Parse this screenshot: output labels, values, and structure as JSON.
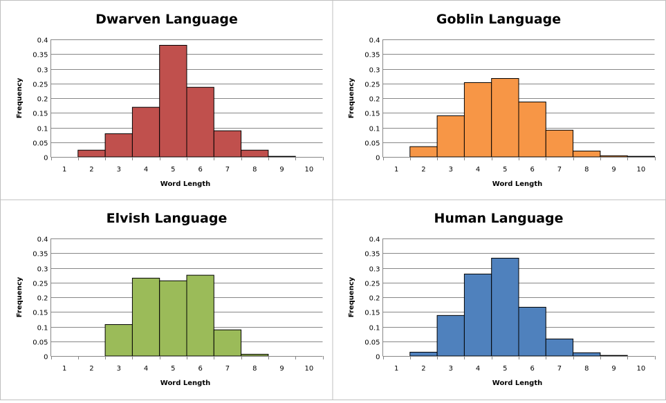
{
  "chart_data": [
    {
      "type": "bar",
      "title": "Dwarven Language",
      "xlabel": "Word Length",
      "ylabel": "Frequency",
      "categories": [
        "1",
        "2",
        "3",
        "4",
        "5",
        "6",
        "7",
        "8",
        "9",
        "10"
      ],
      "values": [
        0,
        0.023,
        0.079,
        0.169,
        0.38,
        0.237,
        0.089,
        0.023,
        0.002,
        0
      ],
      "yticks": [
        "0",
        "0.05",
        "0.1",
        "0.15",
        "0.2",
        "0.25",
        "0.3",
        "0.35",
        "0.4"
      ],
      "ylim": [
        0,
        0.4
      ],
      "grid": true,
      "color": "#c0504d"
    },
    {
      "type": "bar",
      "title": "Goblin Language",
      "xlabel": "Word Length",
      "ylabel": "Frequency",
      "categories": [
        "1",
        "2",
        "3",
        "4",
        "5",
        "6",
        "7",
        "8",
        "9",
        "10"
      ],
      "values": [
        0,
        0.035,
        0.14,
        0.253,
        0.267,
        0.187,
        0.091,
        0.02,
        0.004,
        0.002
      ],
      "yticks": [
        "0",
        "0.05",
        "0.1",
        "0.15",
        "0.2",
        "0.25",
        "0.3",
        "0.35",
        "0.4"
      ],
      "ylim": [
        0,
        0.4
      ],
      "grid": true,
      "color": "#f79646"
    },
    {
      "type": "bar",
      "title": "Elvish Language",
      "xlabel": "Word Length",
      "ylabel": "Frequency",
      "categories": [
        "1",
        "2",
        "3",
        "4",
        "5",
        "6",
        "7",
        "8",
        "9",
        "10"
      ],
      "values": [
        0,
        0,
        0.107,
        0.265,
        0.256,
        0.275,
        0.089,
        0.006,
        0,
        0
      ],
      "yticks": [
        "0",
        "0.05",
        "0.1",
        "0.15",
        "0.2",
        "0.25",
        "0.3",
        "0.35",
        "0.4"
      ],
      "ylim": [
        0,
        0.4
      ],
      "grid": true,
      "color": "#9bbb59"
    },
    {
      "type": "bar",
      "title": "Human Language",
      "xlabel": "Word Length",
      "ylabel": "Frequency",
      "categories": [
        "1",
        "2",
        "3",
        "4",
        "5",
        "6",
        "7",
        "8",
        "9",
        "10"
      ],
      "values": [
        0,
        0.013,
        0.138,
        0.279,
        0.333,
        0.166,
        0.058,
        0.011,
        0.002,
        0
      ],
      "yticks": [
        "0",
        "0.05",
        "0.1",
        "0.15",
        "0.2",
        "0.25",
        "0.3",
        "0.35",
        "0.4"
      ],
      "ylim": [
        0,
        0.4
      ],
      "grid": true,
      "color": "#4f81bd"
    }
  ]
}
